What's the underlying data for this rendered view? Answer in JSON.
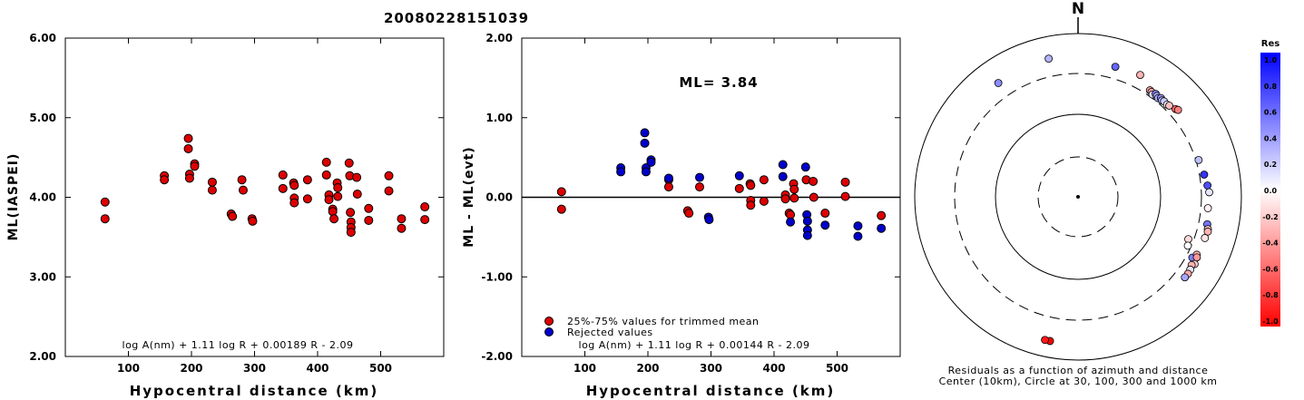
{
  "figure_title": "20080228151039",
  "chart_data": [
    {
      "type": "scatter",
      "id": "ml-vs-distance",
      "xlabel": "Hypocentral distance (km)",
      "ylabel": "ML(IASPEI)",
      "xlim": [
        0,
        600
      ],
      "ylim": [
        2.0,
        6.0
      ],
      "xticks": [
        100,
        200,
        300,
        400,
        500
      ],
      "yticks": [
        2.0,
        3.0,
        4.0,
        5.0,
        6.0
      ],
      "ytick_labels": [
        "2.00",
        "3.00",
        "4.00",
        "5.00",
        "6.00"
      ],
      "formula": "log A(nm) + 1.11 log R + 0.00189 R - 2.09",
      "point_color": "#dd0000",
      "points": [
        [
          63,
          3.94
        ],
        [
          63,
          3.73
        ],
        [
          157,
          4.27
        ],
        [
          157,
          4.22
        ],
        [
          195,
          4.74
        ],
        [
          195,
          4.61
        ],
        [
          197,
          4.29
        ],
        [
          197,
          4.24
        ],
        [
          205,
          4.42
        ],
        [
          205,
          4.39
        ],
        [
          233,
          4.19
        ],
        [
          233,
          4.09
        ],
        [
          263,
          3.79
        ],
        [
          265,
          3.76
        ],
        [
          280,
          4.22
        ],
        [
          282,
          4.09
        ],
        [
          296,
          3.73
        ],
        [
          297,
          3.7
        ],
        [
          345,
          4.28
        ],
        [
          345,
          4.11
        ],
        [
          362,
          4.18
        ],
        [
          363,
          4.15
        ],
        [
          363,
          3.99
        ],
        [
          363,
          3.93
        ],
        [
          384,
          4.22
        ],
        [
          384,
          3.98
        ],
        [
          414,
          4.44
        ],
        [
          414,
          4.28
        ],
        [
          418,
          4.03
        ],
        [
          418,
          3.97
        ],
        [
          424,
          3.85
        ],
        [
          424,
          3.82
        ],
        [
          426,
          3.73
        ],
        [
          431,
          4.18
        ],
        [
          432,
          4.12
        ],
        [
          432,
          4.01
        ],
        [
          450,
          4.43
        ],
        [
          451,
          4.27
        ],
        [
          452,
          3.81
        ],
        [
          453,
          3.69
        ],
        [
          453,
          3.62
        ],
        [
          453,
          3.56
        ],
        [
          462,
          4.25
        ],
        [
          463,
          4.04
        ],
        [
          481,
          3.86
        ],
        [
          481,
          3.71
        ],
        [
          513,
          4.27
        ],
        [
          513,
          4.08
        ],
        [
          533,
          3.73
        ],
        [
          533,
          3.61
        ],
        [
          570,
          3.88
        ],
        [
          570,
          3.72
        ]
      ]
    },
    {
      "type": "scatter",
      "id": "residual-vs-distance",
      "xlabel": "Hypocentral distance (km)",
      "ylabel": "ML - ML(evt)",
      "xlim": [
        0,
        600
      ],
      "ylim": [
        -2.0,
        2.0
      ],
      "xticks": [
        100,
        200,
        300,
        400,
        500
      ],
      "yticks": [
        -2.0,
        -1.0,
        0.0,
        1.0,
        2.0
      ],
      "ytick_labels": [
        "-2.00",
        "-1.00",
        "0.00",
        "1.00",
        "2.00"
      ],
      "annotation": "ML= 3.84",
      "zero_line": 0.0,
      "formula": "log A(nm) + 1.11 log R + 0.00144 R - 2.09",
      "legend": [
        "25%-75% values for trimmed mean",
        "Rejected values"
      ],
      "series": [
        {
          "name": "25%-75% values for trimmed mean",
          "color": "#dd0000",
          "points": [
            [
              63,
              0.07
            ],
            [
              63,
              -0.15
            ],
            [
              233,
              0.22
            ],
            [
              233,
              0.13
            ],
            [
              263,
              -0.17
            ],
            [
              265,
              -0.2
            ],
            [
              282,
              0.13
            ],
            [
              345,
              0.11
            ],
            [
              362,
              0.17
            ],
            [
              363,
              0.15
            ],
            [
              363,
              -0.04
            ],
            [
              363,
              -0.1
            ],
            [
              384,
              0.22
            ],
            [
              384,
              -0.05
            ],
            [
              418,
              0.03
            ],
            [
              418,
              -0.02
            ],
            [
              424,
              -0.2
            ],
            [
              426,
              -0.22
            ],
            [
              431,
              0.17
            ],
            [
              432,
              0.1
            ],
            [
              432,
              -0.01
            ],
            [
              451,
              0.22
            ],
            [
              462,
              0.2
            ],
            [
              463,
              0.0
            ],
            [
              481,
              -0.2
            ],
            [
              513,
              0.19
            ],
            [
              513,
              0.01
            ],
            [
              570,
              -0.23
            ]
          ]
        },
        {
          "name": "Rejected values",
          "color": "#0000cc",
          "points": [
            [
              157,
              0.37
            ],
            [
              157,
              0.32
            ],
            [
              195,
              0.81
            ],
            [
              195,
              0.68
            ],
            [
              197,
              0.37
            ],
            [
              197,
              0.32
            ],
            [
              205,
              0.47
            ],
            [
              205,
              0.44
            ],
            [
              233,
              0.24
            ],
            [
              282,
              0.25
            ],
            [
              296,
              -0.25
            ],
            [
              297,
              -0.28
            ],
            [
              345,
              0.27
            ],
            [
              414,
              0.41
            ],
            [
              414,
              0.26
            ],
            [
              426,
              -0.31
            ],
            [
              450,
              0.38
            ],
            [
              452,
              -0.22
            ],
            [
              453,
              -0.3
            ],
            [
              453,
              -0.41
            ],
            [
              453,
              -0.48
            ],
            [
              481,
              -0.35
            ],
            [
              533,
              -0.36
            ],
            [
              533,
              -0.49
            ],
            [
              570,
              -0.39
            ]
          ]
        }
      ]
    },
    {
      "type": "scatter",
      "id": "azimuth-residuals",
      "subtype": "polar",
      "north_label": "N",
      "caption_line1": "Residuals as a function of azimuth and distance",
      "caption_line2": "Center (10km), Circle at 30, 100, 300 and 1000 km",
      "rings_km": [
        30,
        100,
        300,
        1000
      ],
      "ring_styles": [
        "dashed",
        "solid",
        "dashed",
        "solid"
      ],
      "colorbar": {
        "title": "Res",
        "tick_labels": [
          "1.0",
          "0.8",
          "0.6",
          "0.4",
          "0.2",
          "0.0",
          "-0.2",
          "-0.4",
          "-0.6",
          "-0.8",
          "-1.0"
        ],
        "range": [
          -1.0,
          1.0
        ],
        "positive_color": "#0000ff",
        "negative_color": "#ff0000"
      },
      "points": [
        {
          "az": 325,
          "dist": 480,
          "res": 0.45
        },
        {
          "az": 348,
          "dist": 515,
          "res": 0.3
        },
        {
          "az": 16,
          "dist": 430,
          "res": 0.6
        },
        {
          "az": 27,
          "dist": 450,
          "res": -0.3
        },
        {
          "az": 34,
          "dist": 350,
          "res": -0.35
        },
        {
          "az": 35,
          "dist": 345,
          "res": -0.35
        },
        {
          "az": 36,
          "dist": 330,
          "res": 0.15
        },
        {
          "az": 37,
          "dist": 355,
          "res": 0.5
        },
        {
          "az": 38,
          "dist": 345,
          "res": 0.3
        },
        {
          "az": 39,
          "dist": 335,
          "res": 0.35
        },
        {
          "az": 40,
          "dist": 355,
          "res": 0.4
        },
        {
          "az": 41,
          "dist": 343,
          "res": 0.3
        },
        {
          "az": 42,
          "dist": 350,
          "res": 0.2
        },
        {
          "az": 44,
          "dist": 347,
          "res": 0.05
        },
        {
          "az": 45,
          "dist": 355,
          "res": -0.25
        },
        {
          "az": 48,
          "dist": 380,
          "res": -0.6
        },
        {
          "az": 49,
          "dist": 395,
          "res": -0.5
        },
        {
          "az": 73,
          "dist": 325,
          "res": 0.25
        },
        {
          "az": 80,
          "dist": 345,
          "res": 0.8
        },
        {
          "az": 85,
          "dist": 365,
          "res": 0.7
        },
        {
          "az": 88,
          "dist": 380,
          "res": 0.1
        },
        {
          "az": 95,
          "dist": 370,
          "res": -0.05
        },
        {
          "az": 102,
          "dist": 390,
          "res": 0.55
        },
        {
          "az": 104,
          "dist": 410,
          "res": -0.2
        },
        {
          "az": 105,
          "dist": 417,
          "res": -0.3
        },
        {
          "az": 108,
          "dist": 405,
          "res": -0.1
        },
        {
          "az": 118,
          "dist": 360,
          "res": 0.5
        },
        {
          "az": 116,
          "dist": 390,
          "res": -0.3
        },
        {
          "az": 117,
          "dist": 405,
          "res": -0.4
        },
        {
          "az": 120,
          "dist": 420,
          "res": -0.2
        },
        {
          "az": 121,
          "dist": 395,
          "res": -0.3
        },
        {
          "az": 123,
          "dist": 410,
          "res": 0.1
        },
        {
          "az": 125,
          "dist": 415,
          "res": -0.35
        },
        {
          "az": 127,
          "dist": 410,
          "res": 0.35
        },
        {
          "az": 111,
          "dist": 260,
          "res": -0.15
        },
        {
          "az": 114,
          "dist": 275,
          "res": 0.0
        },
        {
          "az": 191,
          "dist": 610,
          "res": -1.0
        },
        {
          "az": 193,
          "dist": 610,
          "res": -0.9
        }
      ]
    }
  ]
}
